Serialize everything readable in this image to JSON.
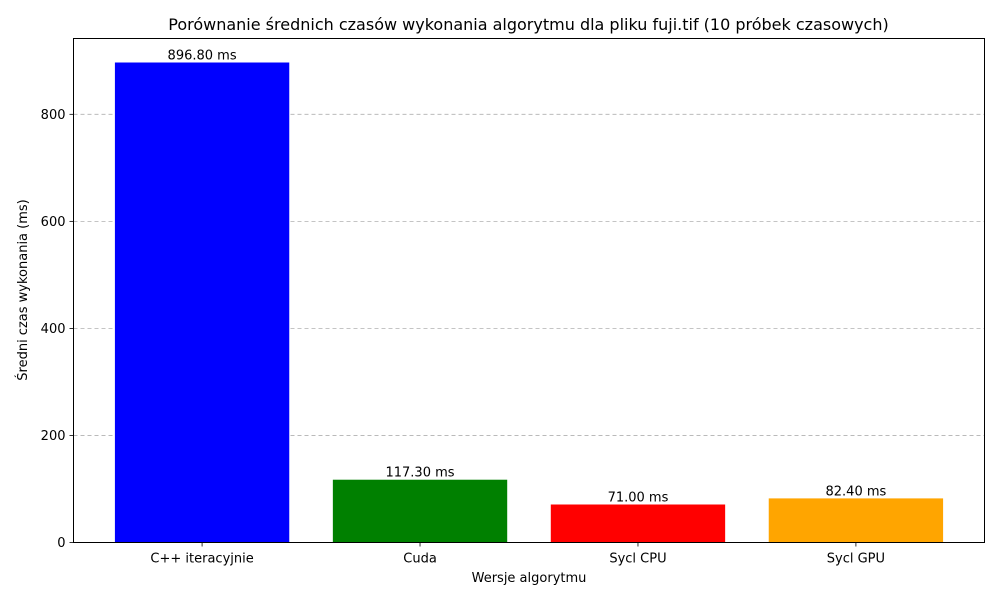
{
  "chart_data": {
    "type": "bar",
    "title": "Porównanie średnich czasów wykonania algorytmu dla pliku fuji.tif (10 próbek czasowych)",
    "xlabel": "Wersje algorytmu",
    "ylabel": "Średni czas wykonania (ms)",
    "categories": [
      "C++ iteracyjnie",
      "Cuda",
      "Sycl CPU",
      "Sycl GPU"
    ],
    "values": [
      896.8,
      117.3,
      71.0,
      82.4
    ],
    "value_labels": [
      "896.80 ms",
      "117.30 ms",
      "71.00 ms",
      "82.40 ms"
    ],
    "colors": [
      "#0000ff",
      "#008000",
      "#ff0000",
      "#ffa500"
    ],
    "ylim": [
      0,
      941.64
    ],
    "yticks": [
      0,
      200,
      400,
      600,
      800
    ],
    "grid": "y-dashed",
    "legend": "none"
  }
}
